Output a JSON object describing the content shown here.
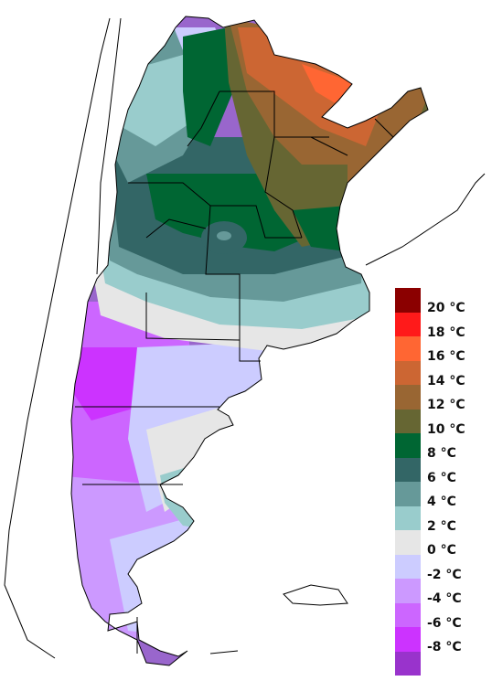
{
  "legend": {
    "colors": [
      "#8b0000",
      "#ff1a1a",
      "#ff6633",
      "#cc6633",
      "#996633",
      "#666633",
      "#006633",
      "#336666",
      "#669999",
      "#99cccc",
      "#e6e6e6",
      "#ccccff",
      "#cc99ff",
      "#cc66ff",
      "#cc33ff",
      "#9933cc"
    ],
    "labels": [
      "20 °C",
      "18 °C",
      "16 °C",
      "14 °C",
      "12 °C",
      "10 °C",
      "8 °C",
      "6 °C",
      "4 °C",
      "2 °C",
      "0 °C",
      "-2 °C",
      "-4 °C",
      "-6 °C",
      "-8 °C"
    ]
  }
}
